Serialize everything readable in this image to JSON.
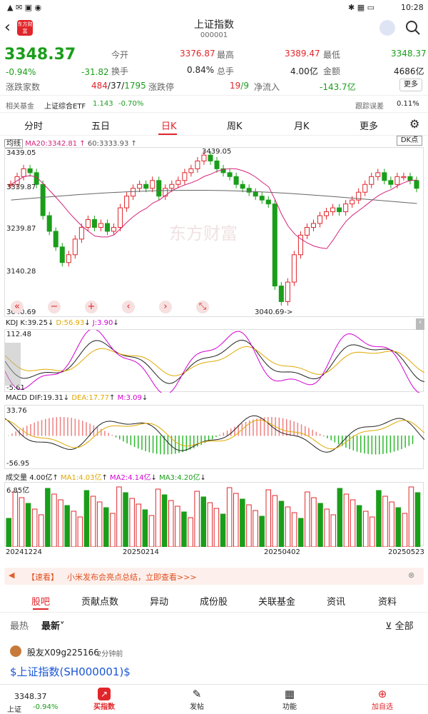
{
  "status": {
    "time": "10:28"
  },
  "header": {
    "title": "上证指数",
    "code": "000001",
    "logo_text": "东方财富"
  },
  "quote": {
    "price": "3348.37",
    "change_pct": "-0.94%",
    "change_amt": "-31.82",
    "stats": [
      {
        "label": "今开",
        "value": "3376.87"
      },
      {
        "label": "最高",
        "value": "3389.47"
      },
      {
        "label": "最低",
        "value": "3348.37"
      },
      {
        "label": "换手",
        "value": "0.84%"
      },
      {
        "label": "总手",
        "value": "4.00亿"
      },
      {
        "label": "金额",
        "value": "4686亿"
      }
    ],
    "rise_fall_label": "涨跌家数",
    "rise": "484",
    "flat": "/37/",
    "fall": "1795",
    "limit_label": "涨跌停",
    "limit_up": "19",
    "limit_down": "/9",
    "inflow_label": "净流入",
    "inflow": "-143.7亿",
    "more": "更多"
  },
  "fund_row": {
    "label": "相关基金",
    "fund": "上证综合ETF",
    "price": "1.143",
    "pct": "-0.70%",
    "track_label": "跟踪误差",
    "track_value": "0.11%"
  },
  "chart_tabs": [
    "分时",
    "五日",
    "日K",
    "周K",
    "月K",
    "更多"
  ],
  "main_chart": {
    "indicator": "均线",
    "ma20": "MA20:3342.81",
    "ma60": "60:3333.93",
    "dk_label": "DK点",
    "y_labels": [
      "3439.05",
      "3339.87",
      "3239.87",
      "3140.28",
      "3040.69"
    ],
    "high_mark": "3439.05",
    "low_mark": "3040.69->",
    "watermark": "东方财富"
  },
  "kdj": {
    "label": "KDJ",
    "k": "K:39.25",
    "d": "D:56.93",
    "j": "J:3.90",
    "ymax": "112.48",
    "ymin": "-5.61"
  },
  "macd": {
    "label": "MACD",
    "dif": "DIF:19.31",
    "dea": "DEA:17.77",
    "m": "M:3.09",
    "ymax": "33.76",
    "ymin": "-56.95"
  },
  "volume": {
    "label": "成交量",
    "v": "4.00亿",
    "ma1": "MA1:4.03亿",
    "ma2": "MA2:4.14亿",
    "ma3": "MA3:4.20亿",
    "ymax": "6.85亿"
  },
  "dates": [
    "20241224",
    "20250214",
    "20250402",
    "20250523"
  ],
  "news": {
    "tag": "【速看】",
    "text": "小米发布会亮点总结，立即查看>>>"
  },
  "nav_tabs": [
    "股吧",
    "贡献点数",
    "异动",
    "成份股",
    "关联基金",
    "资讯",
    "资料"
  ],
  "filter": {
    "hot": "最热",
    "new": "最新",
    "all": "全部"
  },
  "post": {
    "user": "股友X09g225166",
    "time": "2分钟前",
    "content": "$上证指数(SH000001)$"
  },
  "bottom_bar": {
    "mini_name": "上证",
    "mini_price": "3348.37",
    "mini_pct": "-0.94%",
    "items": [
      "买指数",
      "发帖",
      "功能",
      "加自选"
    ]
  },
  "chart_data": {
    "type": "candlestick",
    "title": "上证指数 日K",
    "ylim": [
      3040.69,
      3439.05
    ],
    "x": [
      "20241224",
      "20250214",
      "20250402",
      "20250523"
    ],
    "series": [
      {
        "name": "MA20",
        "last": 3342.81
      },
      {
        "name": "MA60",
        "last": 3333.93
      }
    ]
  }
}
